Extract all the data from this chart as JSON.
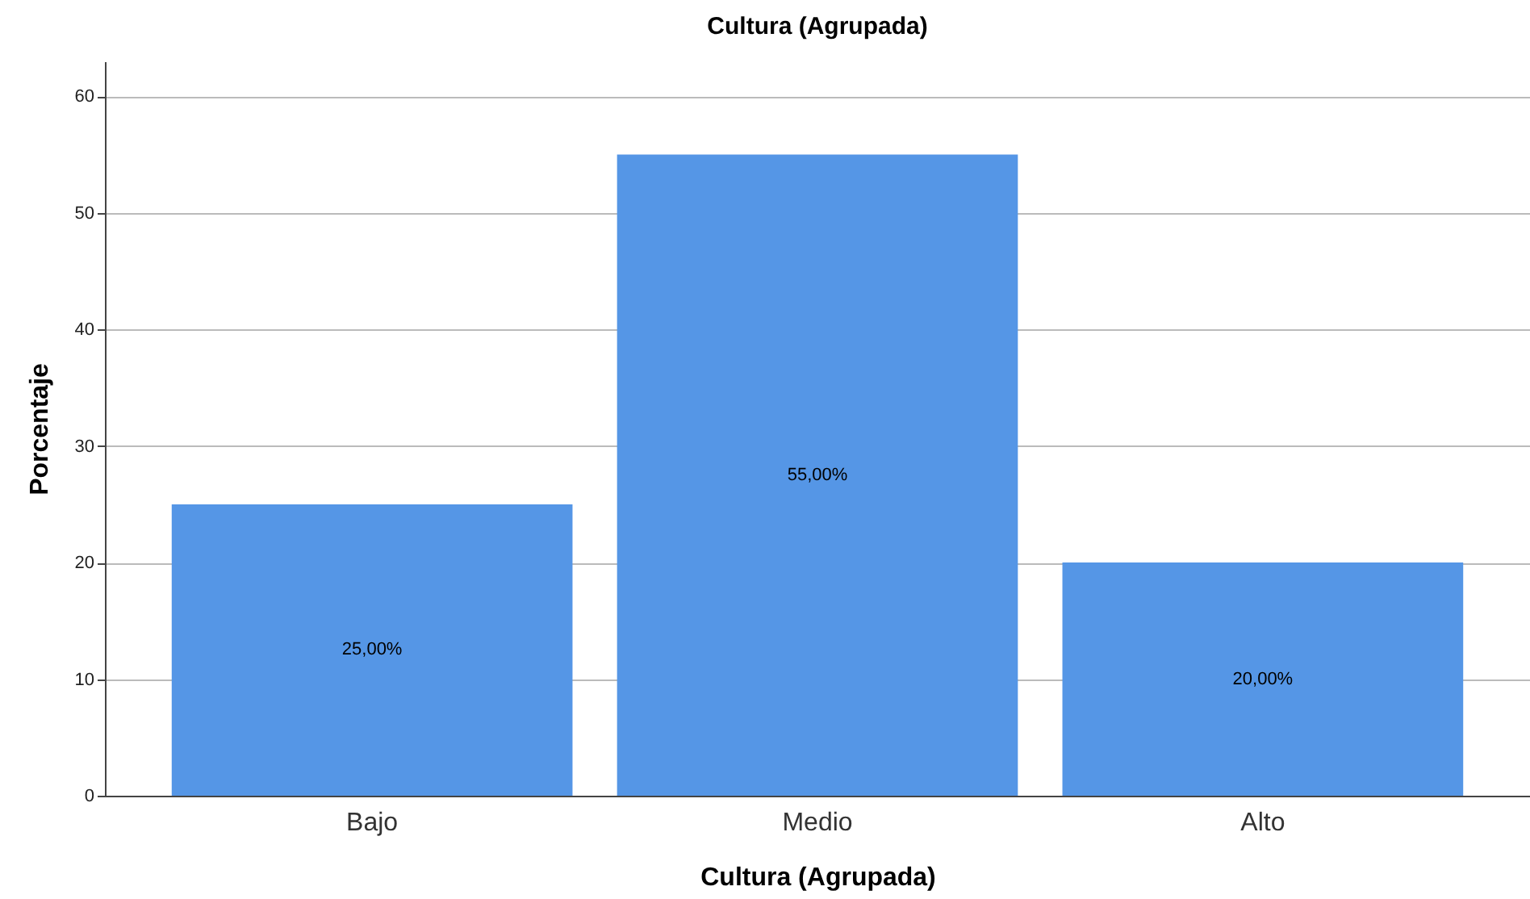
{
  "chart_data": {
    "type": "bar",
    "title": "Cultura (Agrupada)",
    "xlabel": "Cultura (Agrupada)",
    "ylabel": "Porcentaje",
    "categories": [
      "Bajo",
      "Medio",
      "Alto"
    ],
    "values": [
      25,
      55,
      20
    ],
    "value_labels": [
      "25,00%",
      "55,00%",
      "20,00%"
    ],
    "color": "#5596e6",
    "ylim": [
      0,
      63
    ],
    "yticks": [
      0,
      10,
      20,
      30,
      40,
      50,
      60
    ],
    "grid": "y"
  }
}
